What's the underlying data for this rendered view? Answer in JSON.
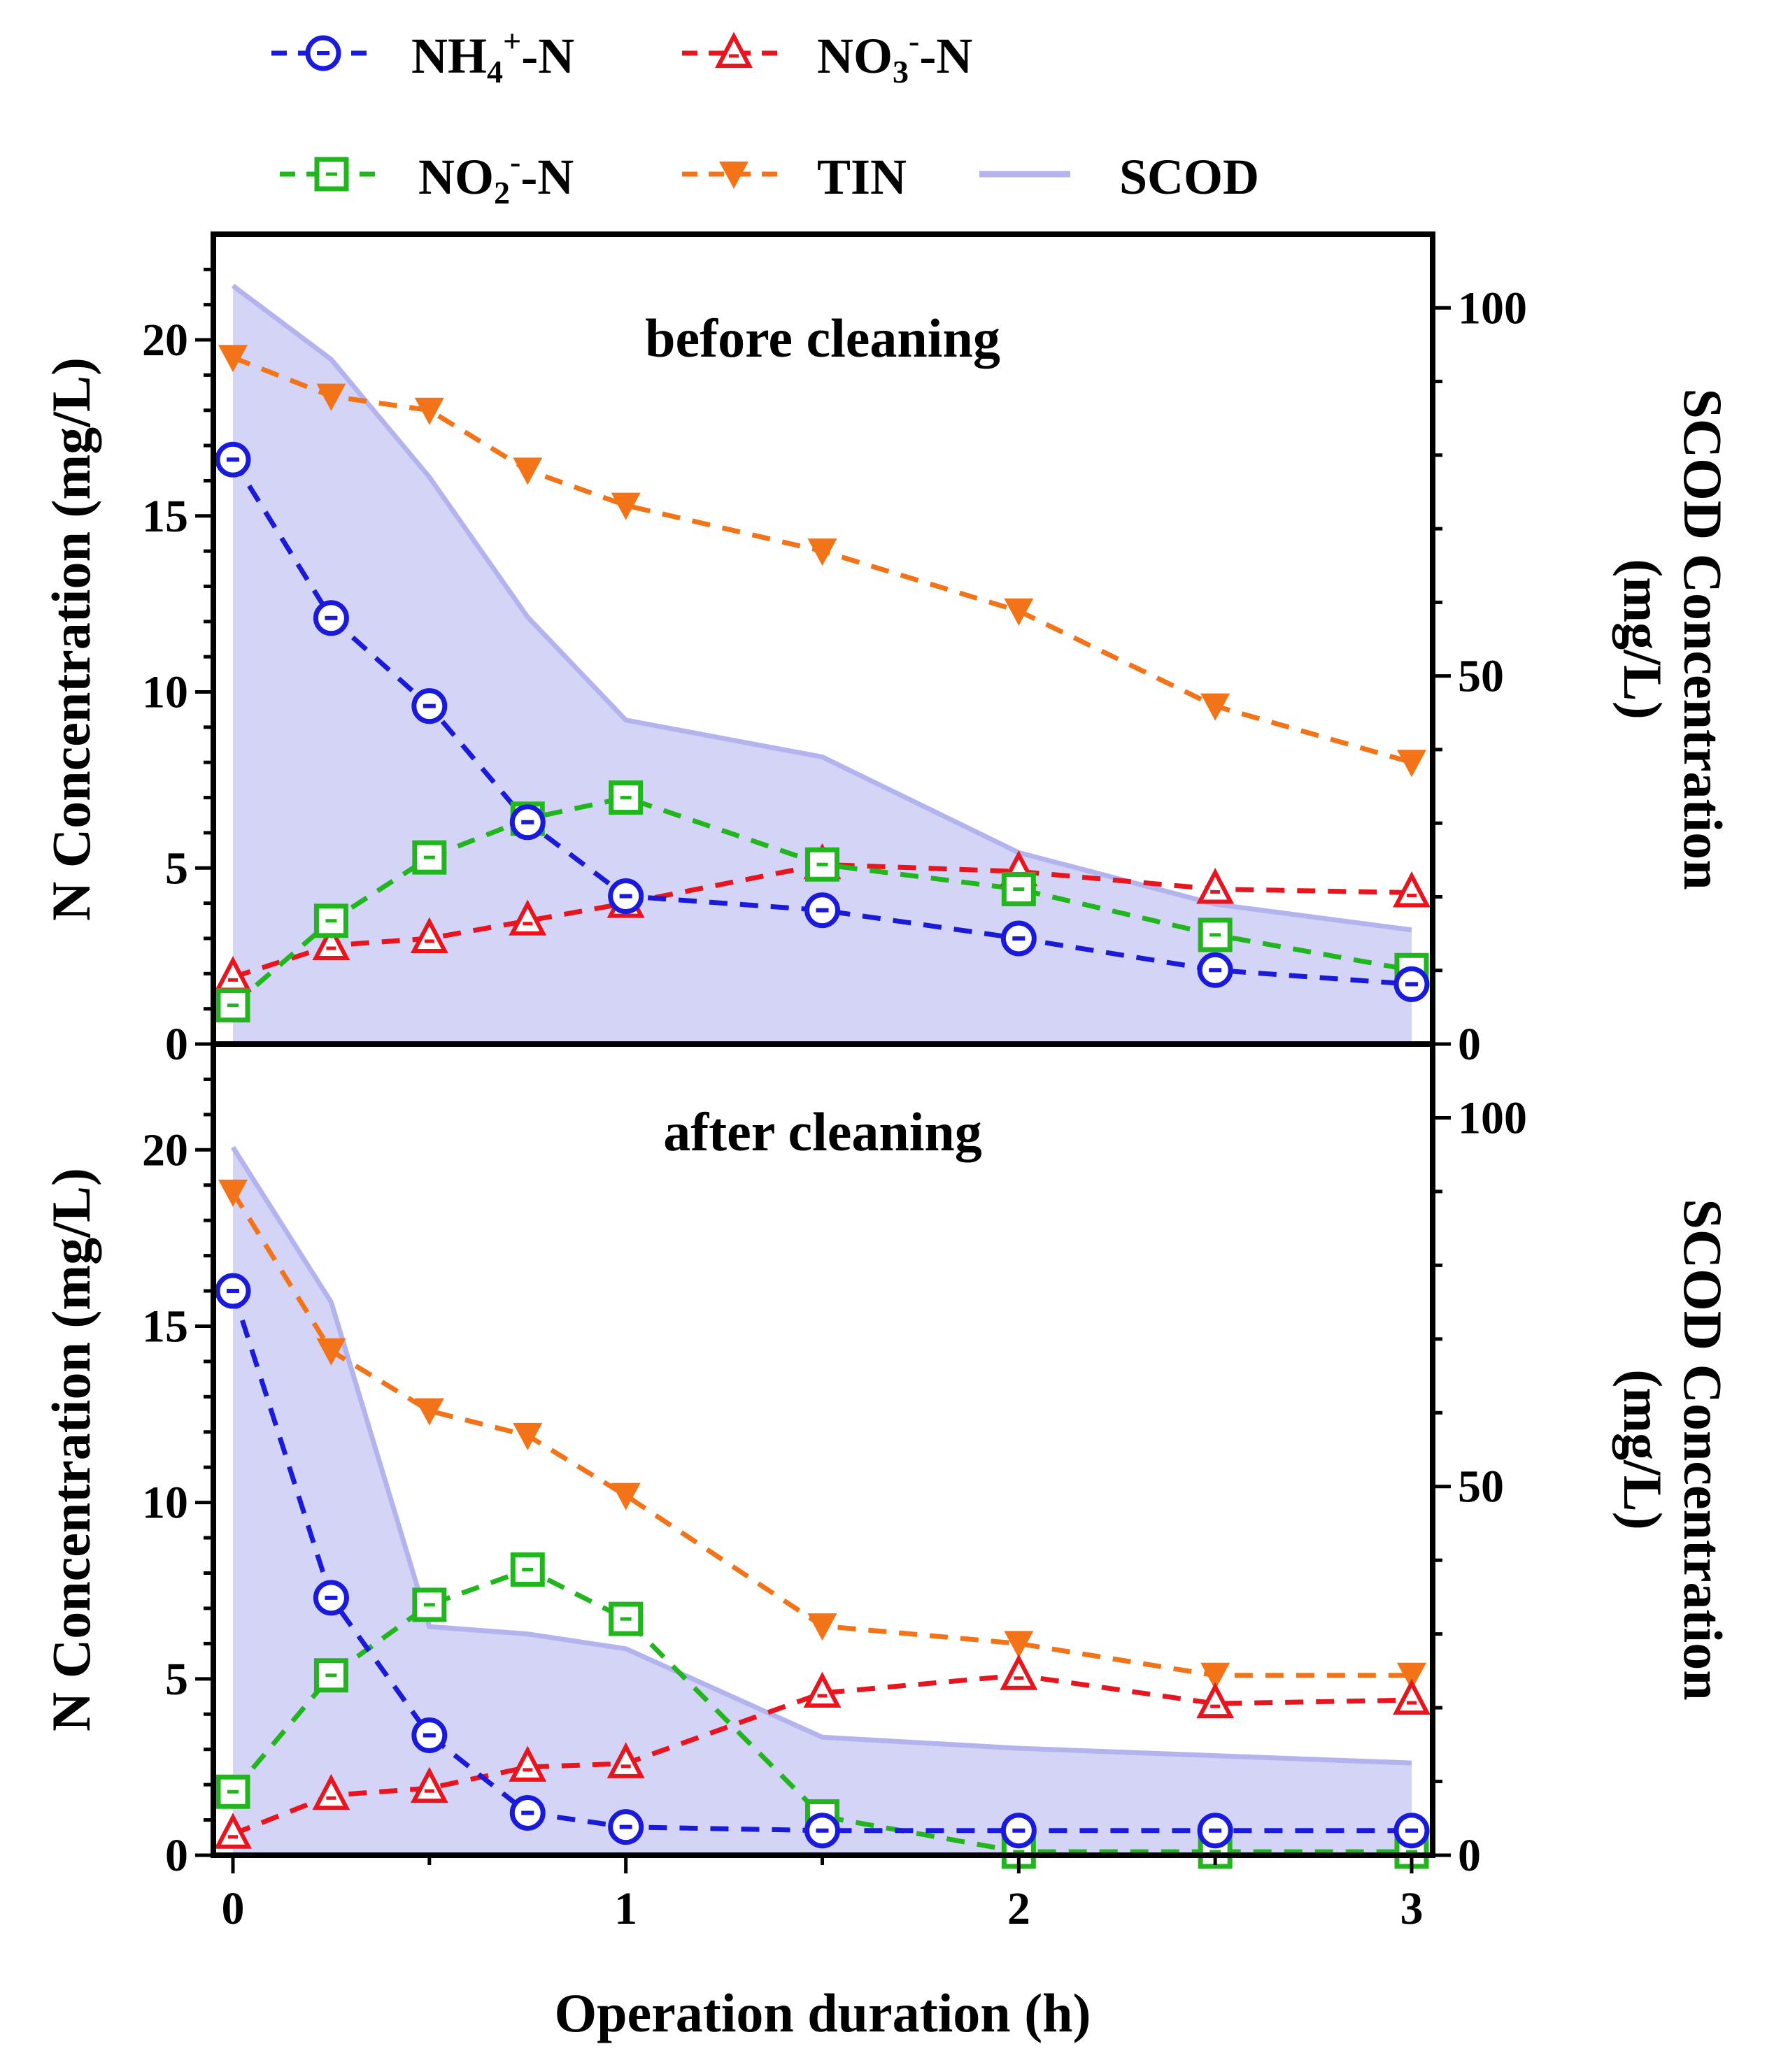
{
  "chart_data": {
    "type": "line",
    "xlabel": "Operation duration (h)",
    "ylabel_left": "N Concentration (mg/L)",
    "ylabel_right_line1": "SCOD Concentration",
    "ylabel_right_line2": "(mg/L)",
    "xlim": [
      0,
      3
    ],
    "xticks": [
      "0",
      "1",
      "2",
      "3"
    ],
    "ylim_left": [
      0,
      23
    ],
    "yticks_left": [
      "0",
      "5",
      "10",
      "15",
      "20"
    ],
    "ylim_right": [
      0,
      110
    ],
    "yticks_right": [
      "0",
      "50",
      "100"
    ],
    "legend": [
      {
        "key": "nh4",
        "base": "NH",
        "sub": "4",
        "sup": "+",
        "tail": "-N"
      },
      {
        "key": "no3",
        "base": "NO",
        "sub": "3",
        "sup": "-",
        "tail": "-N"
      },
      {
        "key": "no2",
        "base": "NO",
        "sub": "2",
        "sup": "-",
        "tail": "-N"
      },
      {
        "key": "tin",
        "base": "TIN",
        "sub": "",
        "sup": "",
        "tail": ""
      },
      {
        "key": "scod",
        "base": "SCOD",
        "sub": "",
        "sup": "",
        "tail": ""
      }
    ],
    "colors": {
      "nh4": "#1a1adb",
      "no3": "#e8141e",
      "no2": "#22b61e",
      "tin": "#f27318",
      "scod_fill": "#d4d4f7",
      "scod_line": "#b3b3ee"
    },
    "x": [
      0,
      0.25,
      0.5,
      0.75,
      1,
      1.5,
      2,
      2.5,
      3
    ],
    "panels": [
      {
        "title": "before cleaning",
        "series": {
          "nh4": [
            16.6,
            12.1,
            9.6,
            6.3,
            4.2,
            3.8,
            3.0,
            2.1,
            1.7
          ],
          "no3": [
            1.9,
            2.8,
            3.0,
            3.5,
            4.0,
            5.1,
            4.9,
            4.4,
            4.3
          ],
          "no2": [
            1.1,
            3.5,
            5.3,
            6.4,
            7.0,
            5.1,
            4.4,
            3.1,
            2.1
          ],
          "tin": [
            19.5,
            18.4,
            18.0,
            16.3,
            15.3,
            14.0,
            12.3,
            9.6,
            8.0
          ],
          "scod": [
            103,
            93,
            77,
            58,
            44,
            39,
            26,
            19,
            15.5
          ]
        }
      },
      {
        "title": "after cleaning",
        "series": {
          "nh4": [
            16.0,
            7.3,
            3.4,
            1.2,
            0.8,
            0.7,
            0.7,
            0.7,
            0.7
          ],
          "no3": [
            0.6,
            1.7,
            1.9,
            2.5,
            2.6,
            4.6,
            5.1,
            4.3,
            4.4
          ],
          "no2": [
            1.8,
            5.1,
            7.1,
            8.1,
            6.7,
            1.1,
            0.1,
            0.1,
            0.1
          ],
          "tin": [
            18.8,
            14.3,
            12.6,
            11.9,
            10.2,
            6.5,
            6.0,
            5.1,
            5.1
          ],
          "scod": [
            96,
            75,
            31,
            30,
            28,
            16,
            14.5,
            13.5,
            12.5
          ]
        }
      }
    ]
  }
}
